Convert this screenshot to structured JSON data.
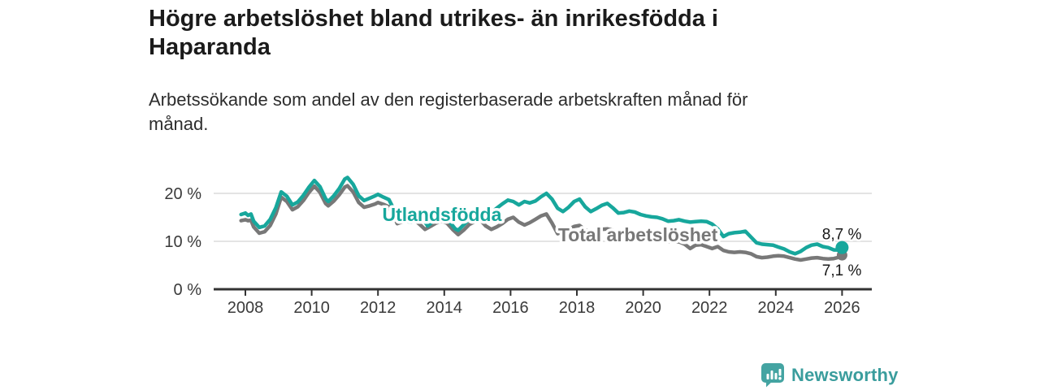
{
  "header": {
    "title": "Högre arbetslöshet bland utrikes- än inrikesfödda i Haparanda",
    "title_lines": [
      "Högre arbetslöshet bland utrikes- än inrikesfödda i",
      "Haparanda"
    ],
    "subtitle": "Arbetssökande som andel av den registerbaserade arbetskraften månad för månad.",
    "subtitle_lines": [
      "Arbetssökande som andel av den registerbaserade arbetskraften månad för",
      "månad."
    ]
  },
  "footer": {
    "brand": "Newsworthy"
  },
  "colors": {
    "utlandsfodda": "#17a79c",
    "total": "#787878",
    "axis": "#333333",
    "gridline": "#dcdcdc",
    "title": "#1b1b1b",
    "value_label": "#191919",
    "brand_icon": "#44a4a2",
    "brand_text": "#3a9d9d"
  },
  "chart_data": {
    "type": "line",
    "title": "Högre arbetslöshet bland utrikes- än inrikesfödda i Haparanda",
    "subtitle": "Arbetssökande som andel av den registerbaserade arbetskraften månad för månad.",
    "xlabel": "",
    "ylabel": "",
    "unit": "%",
    "grid": "horizontal",
    "x_axis": {
      "domain": [
        2007.87,
        2026.0
      ],
      "ticks": [
        2008,
        2010,
        2012,
        2014,
        2016,
        2018,
        2020,
        2022,
        2024,
        2026
      ],
      "tick_labels": [
        "2008",
        "2010",
        "2012",
        "2014",
        "2016",
        "2018",
        "2020",
        "2022",
        "2024",
        "2026"
      ]
    },
    "y_axis": {
      "domain": [
        0,
        24
      ],
      "ticks": [
        0,
        10,
        20
      ],
      "tick_labels": [
        "0 %",
        "10 %",
        "20 %"
      ]
    },
    "series": [
      {
        "id": "total",
        "name": "Total arbetslöshet",
        "color_key": "total",
        "end_value": 7.1,
        "end_label": "7,1 %",
        "end_label_side": "below",
        "label_pos": {
          "year": 2019.84,
          "value": 10.0
        },
        "points": [
          [
            2007.87,
            14.3
          ],
          [
            2008.0,
            14.5
          ],
          [
            2008.08,
            14.3
          ],
          [
            2008.17,
            14.4
          ],
          [
            2008.25,
            13.0
          ],
          [
            2008.42,
            11.7
          ],
          [
            2008.58,
            12.0
          ],
          [
            2008.75,
            13.3
          ],
          [
            2008.92,
            15.7
          ],
          [
            2009.08,
            19.2
          ],
          [
            2009.25,
            18.3
          ],
          [
            2009.42,
            16.6
          ],
          [
            2009.58,
            17.2
          ],
          [
            2009.75,
            18.5
          ],
          [
            2009.92,
            20.2
          ],
          [
            2010.08,
            21.5
          ],
          [
            2010.25,
            20.2
          ],
          [
            2010.42,
            17.9
          ],
          [
            2010.5,
            17.4
          ],
          [
            2010.67,
            18.4
          ],
          [
            2010.83,
            19.7
          ],
          [
            2011.0,
            21.3
          ],
          [
            2011.08,
            21.6
          ],
          [
            2011.25,
            20.3
          ],
          [
            2011.42,
            18.1
          ],
          [
            2011.58,
            17.1
          ],
          [
            2011.75,
            17.4
          ],
          [
            2011.92,
            17.8
          ],
          [
            2012.0,
            18.1
          ],
          [
            2012.17,
            17.7
          ],
          [
            2012.33,
            17.2
          ],
          [
            2012.5,
            15.0
          ],
          [
            2012.58,
            13.7
          ],
          [
            2012.75,
            14.1
          ],
          [
            2012.92,
            14.7
          ],
          [
            2013.08,
            14.5
          ],
          [
            2013.25,
            13.6
          ],
          [
            2013.42,
            12.5
          ],
          [
            2013.58,
            13.1
          ],
          [
            2013.75,
            13.8
          ],
          [
            2013.92,
            14.2
          ],
          [
            2014.08,
            13.8
          ],
          [
            2014.25,
            12.5
          ],
          [
            2014.42,
            11.4
          ],
          [
            2014.58,
            12.3
          ],
          [
            2014.75,
            13.5
          ],
          [
            2014.92,
            14.1
          ],
          [
            2015.08,
            14.5
          ],
          [
            2015.25,
            13.2
          ],
          [
            2015.42,
            12.5
          ],
          [
            2015.58,
            13.0
          ],
          [
            2015.75,
            13.7
          ],
          [
            2015.92,
            14.6
          ],
          [
            2016.08,
            15.0
          ],
          [
            2016.25,
            14.0
          ],
          [
            2016.42,
            13.4
          ],
          [
            2016.58,
            13.9
          ],
          [
            2016.75,
            14.6
          ],
          [
            2016.92,
            15.3
          ],
          [
            2017.08,
            15.7
          ],
          [
            2017.25,
            13.8
          ],
          [
            2017.42,
            11.6
          ],
          [
            2017.58,
            12.0
          ],
          [
            2017.75,
            12.5
          ],
          [
            2017.92,
            13.1
          ],
          [
            2018.08,
            13.3
          ],
          [
            2018.25,
            12.4
          ],
          [
            2018.42,
            11.9
          ],
          [
            2018.58,
            12.1
          ],
          [
            2018.75,
            12.5
          ],
          [
            2018.92,
            12.6
          ],
          [
            2019.08,
            12.3
          ],
          [
            2019.25,
            11.7
          ],
          [
            2019.42,
            11.4
          ],
          [
            2019.58,
            11.5
          ],
          [
            2019.75,
            11.3
          ],
          [
            2019.92,
            11.1
          ],
          [
            2020.08,
            11.0
          ],
          [
            2020.25,
            10.7
          ],
          [
            2020.42,
            10.5
          ],
          [
            2020.58,
            10.2
          ],
          [
            2020.75,
            10.0
          ],
          [
            2020.92,
            9.9
          ],
          [
            2021.08,
            9.9
          ],
          [
            2021.25,
            9.4
          ],
          [
            2021.42,
            8.5
          ],
          [
            2021.58,
            9.2
          ],
          [
            2021.75,
            9.3
          ],
          [
            2021.92,
            8.9
          ],
          [
            2022.08,
            8.5
          ],
          [
            2022.25,
            8.9
          ],
          [
            2022.42,
            8.1
          ],
          [
            2022.58,
            7.8
          ],
          [
            2022.75,
            7.7
          ],
          [
            2022.92,
            7.8
          ],
          [
            2023.08,
            7.7
          ],
          [
            2023.25,
            7.4
          ],
          [
            2023.42,
            6.8
          ],
          [
            2023.58,
            6.6
          ],
          [
            2023.75,
            6.7
          ],
          [
            2023.92,
            6.9
          ],
          [
            2024.08,
            7.0
          ],
          [
            2024.25,
            6.9
          ],
          [
            2024.42,
            6.6
          ],
          [
            2024.58,
            6.3
          ],
          [
            2024.75,
            6.1
          ],
          [
            2024.92,
            6.3
          ],
          [
            2025.08,
            6.5
          ],
          [
            2025.25,
            6.6
          ],
          [
            2025.42,
            6.4
          ],
          [
            2025.58,
            6.3
          ],
          [
            2025.75,
            6.4
          ],
          [
            2025.92,
            6.7
          ],
          [
            2026.0,
            7.1
          ]
        ]
      },
      {
        "id": "utlandsfodda",
        "name": "Utlandsfödda",
        "color_key": "utlandsfodda",
        "end_value": 8.7,
        "end_label": "8,7 %",
        "end_label_side": "above",
        "label_pos": {
          "year": 2013.93,
          "value": 14.2
        },
        "points": [
          [
            2007.87,
            15.6
          ],
          [
            2008.0,
            15.9
          ],
          [
            2008.08,
            15.4
          ],
          [
            2008.17,
            15.7
          ],
          [
            2008.25,
            14.2
          ],
          [
            2008.42,
            12.9
          ],
          [
            2008.58,
            13.2
          ],
          [
            2008.75,
            14.6
          ],
          [
            2008.92,
            17.0
          ],
          [
            2009.08,
            20.3
          ],
          [
            2009.25,
            19.4
          ],
          [
            2009.42,
            17.6
          ],
          [
            2009.58,
            18.2
          ],
          [
            2009.75,
            19.6
          ],
          [
            2009.92,
            21.3
          ],
          [
            2010.08,
            22.7
          ],
          [
            2010.25,
            21.4
          ],
          [
            2010.42,
            18.9
          ],
          [
            2010.5,
            18.3
          ],
          [
            2010.67,
            19.5
          ],
          [
            2010.83,
            21.0
          ],
          [
            2011.0,
            23.0
          ],
          [
            2011.08,
            23.3
          ],
          [
            2011.25,
            21.9
          ],
          [
            2011.42,
            19.5
          ],
          [
            2011.58,
            18.5
          ],
          [
            2011.75,
            19.0
          ],
          [
            2011.92,
            19.5
          ],
          [
            2012.0,
            19.8
          ],
          [
            2012.17,
            19.2
          ],
          [
            2012.33,
            18.7
          ],
          [
            2012.5,
            16.4
          ],
          [
            2012.67,
            14.9
          ],
          [
            2012.83,
            14.2
          ],
          [
            2013.0,
            14.0
          ],
          [
            2013.17,
            15.2
          ],
          [
            2013.33,
            14.9
          ],
          [
            2013.5,
            13.2
          ],
          [
            2013.67,
            14.2
          ],
          [
            2013.83,
            15.0
          ],
          [
            2014.0,
            14.9
          ],
          [
            2014.17,
            14.0
          ],
          [
            2014.33,
            12.6
          ],
          [
            2014.42,
            12.3
          ],
          [
            2014.58,
            13.4
          ],
          [
            2014.75,
            14.6
          ],
          [
            2014.92,
            15.3
          ],
          [
            2015.08,
            15.8
          ],
          [
            2015.25,
            16.2
          ],
          [
            2015.42,
            16.0
          ],
          [
            2015.58,
            16.9
          ],
          [
            2015.75,
            17.8
          ],
          [
            2015.92,
            18.6
          ],
          [
            2016.08,
            18.3
          ],
          [
            2016.25,
            17.6
          ],
          [
            2016.42,
            18.3
          ],
          [
            2016.58,
            18.0
          ],
          [
            2016.75,
            18.4
          ],
          [
            2016.92,
            19.3
          ],
          [
            2017.08,
            20.0
          ],
          [
            2017.25,
            18.8
          ],
          [
            2017.42,
            16.9
          ],
          [
            2017.58,
            16.2
          ],
          [
            2017.75,
            17.1
          ],
          [
            2017.92,
            18.3
          ],
          [
            2018.08,
            18.8
          ],
          [
            2018.25,
            17.2
          ],
          [
            2018.42,
            16.2
          ],
          [
            2018.58,
            16.8
          ],
          [
            2018.75,
            17.5
          ],
          [
            2018.92,
            17.9
          ],
          [
            2019.08,
            17.0
          ],
          [
            2019.25,
            15.9
          ],
          [
            2019.42,
            16.0
          ],
          [
            2019.58,
            16.3
          ],
          [
            2019.75,
            16.1
          ],
          [
            2019.92,
            15.6
          ],
          [
            2020.08,
            15.3
          ],
          [
            2020.25,
            15.1
          ],
          [
            2020.42,
            15.0
          ],
          [
            2020.58,
            14.7
          ],
          [
            2020.75,
            14.2
          ],
          [
            2020.92,
            14.3
          ],
          [
            2021.08,
            14.5
          ],
          [
            2021.25,
            14.2
          ],
          [
            2021.42,
            14.0
          ],
          [
            2021.58,
            14.1
          ],
          [
            2021.75,
            14.2
          ],
          [
            2021.92,
            14.1
          ],
          [
            2022.08,
            13.6
          ],
          [
            2022.25,
            12.6
          ],
          [
            2022.42,
            11.0
          ],
          [
            2022.58,
            11.6
          ],
          [
            2022.75,
            11.8
          ],
          [
            2022.92,
            11.9
          ],
          [
            2023.08,
            12.1
          ],
          [
            2023.25,
            10.9
          ],
          [
            2023.42,
            9.7
          ],
          [
            2023.58,
            9.4
          ],
          [
            2023.75,
            9.3
          ],
          [
            2023.92,
            9.2
          ],
          [
            2024.08,
            8.8
          ],
          [
            2024.25,
            8.4
          ],
          [
            2024.42,
            7.8
          ],
          [
            2024.58,
            7.4
          ],
          [
            2024.75,
            7.9
          ],
          [
            2024.92,
            8.7
          ],
          [
            2025.08,
            9.2
          ],
          [
            2025.25,
            9.4
          ],
          [
            2025.42,
            8.9
          ],
          [
            2025.58,
            8.7
          ],
          [
            2025.75,
            8.2
          ],
          [
            2025.92,
            8.2
          ],
          [
            2026.0,
            8.7
          ]
        ]
      }
    ]
  }
}
